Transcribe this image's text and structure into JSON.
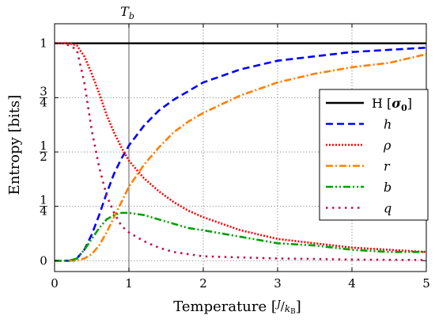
{
  "chart_data": {
    "type": "line",
    "title": "",
    "xlabel": "Temperature [J/kB]",
    "xlabel_main": "Temperature",
    "xlabel_unit_open": "[",
    "xlabel_unit_num": "J",
    "xlabel_unit_den": "kB",
    "xlabel_unit_close": "]",
    "ylabel": "Entropy [bits]",
    "xlim": [
      0,
      5
    ],
    "ylim": [
      -0.05,
      1.09
    ],
    "grid": true,
    "x_ticks": [
      {
        "value": 0,
        "label": "0"
      },
      {
        "value": 1,
        "label": "1"
      },
      {
        "value": 2,
        "label": "2"
      },
      {
        "value": 3,
        "label": "3"
      },
      {
        "value": 4,
        "label": "4"
      },
      {
        "value": 5,
        "label": "5"
      }
    ],
    "y_ticks": [
      {
        "value": 0,
        "label": "0"
      },
      {
        "value": 0.25,
        "label": "1/4",
        "num": "1",
        "den": "4"
      },
      {
        "value": 0.5,
        "label": "1/2",
        "num": "1",
        "den": "2"
      },
      {
        "value": 0.75,
        "label": "3/4",
        "num": "3",
        "den": "4"
      },
      {
        "value": 1,
        "label": "1"
      }
    ],
    "annotations": [
      {
        "text": "T_b",
        "main": "T",
        "sub": "b",
        "x": 1
      }
    ],
    "legend": {
      "placement": "right"
    },
    "x": [
      0,
      0.1,
      0.2,
      0.3,
      0.4,
      0.5,
      0.6,
      0.7,
      0.8,
      0.9,
      1.0,
      1.2,
      1.4,
      1.6,
      1.8,
      2.0,
      2.5,
      3.0,
      3.5,
      4.0,
      4.5,
      5.0
    ],
    "series": [
      {
        "name": "H [σ0]",
        "legend_main": "H",
        "legend_open": "[",
        "legend_sym": "σ",
        "legend_sub": "0",
        "legend_close": "]",
        "color": "#000000",
        "style": "solid",
        "values": [
          1,
          1,
          1,
          1,
          1,
          1,
          1,
          1,
          1,
          1,
          1,
          1,
          1,
          1,
          1,
          1,
          1,
          1,
          1,
          1,
          1,
          1
        ]
      },
      {
        "name": "h",
        "color": "#0000ff",
        "style": "dashed",
        "values": [
          0,
          0,
          0,
          0.01,
          0.05,
          0.12,
          0.21,
          0.31,
          0.4,
          0.47,
          0.53,
          0.62,
          0.69,
          0.74,
          0.78,
          0.82,
          0.88,
          0.92,
          0.94,
          0.96,
          0.97,
          0.98
        ]
      },
      {
        "name": "ρ",
        "color": "#ff0000",
        "style": "dotted",
        "values": [
          1,
          1,
          1,
          0.99,
          0.94,
          0.86,
          0.77,
          0.67,
          0.59,
          0.52,
          0.46,
          0.38,
          0.32,
          0.27,
          0.23,
          0.2,
          0.14,
          0.1,
          0.08,
          0.06,
          0.05,
          0.04
        ]
      },
      {
        "name": "r",
        "color": "#ff8000",
        "style": "dashdot",
        "values": [
          0,
          0,
          0,
          0,
          0.01,
          0.03,
          0.07,
          0.13,
          0.2,
          0.27,
          0.34,
          0.44,
          0.52,
          0.59,
          0.64,
          0.68,
          0.76,
          0.82,
          0.86,
          0.89,
          0.91,
          0.95
        ]
      },
      {
        "name": "b",
        "color": "#00a000",
        "style": "dashdotdot",
        "values": [
          0,
          0,
          0,
          0.01,
          0.05,
          0.1,
          0.15,
          0.19,
          0.21,
          0.22,
          0.22,
          0.21,
          0.19,
          0.17,
          0.15,
          0.14,
          0.11,
          0.08,
          0.07,
          0.05,
          0.04,
          0.04
        ]
      },
      {
        "name": "q",
        "color": "#c0104a",
        "style": "dotted-sparse",
        "values": [
          1,
          1,
          0.99,
          0.97,
          0.82,
          0.6,
          0.43,
          0.3,
          0.22,
          0.16,
          0.13,
          0.09,
          0.06,
          0.04,
          0.03,
          0.02,
          0.015,
          0.01,
          0.008,
          0.005,
          0.004,
          0.003
        ]
      }
    ]
  }
}
